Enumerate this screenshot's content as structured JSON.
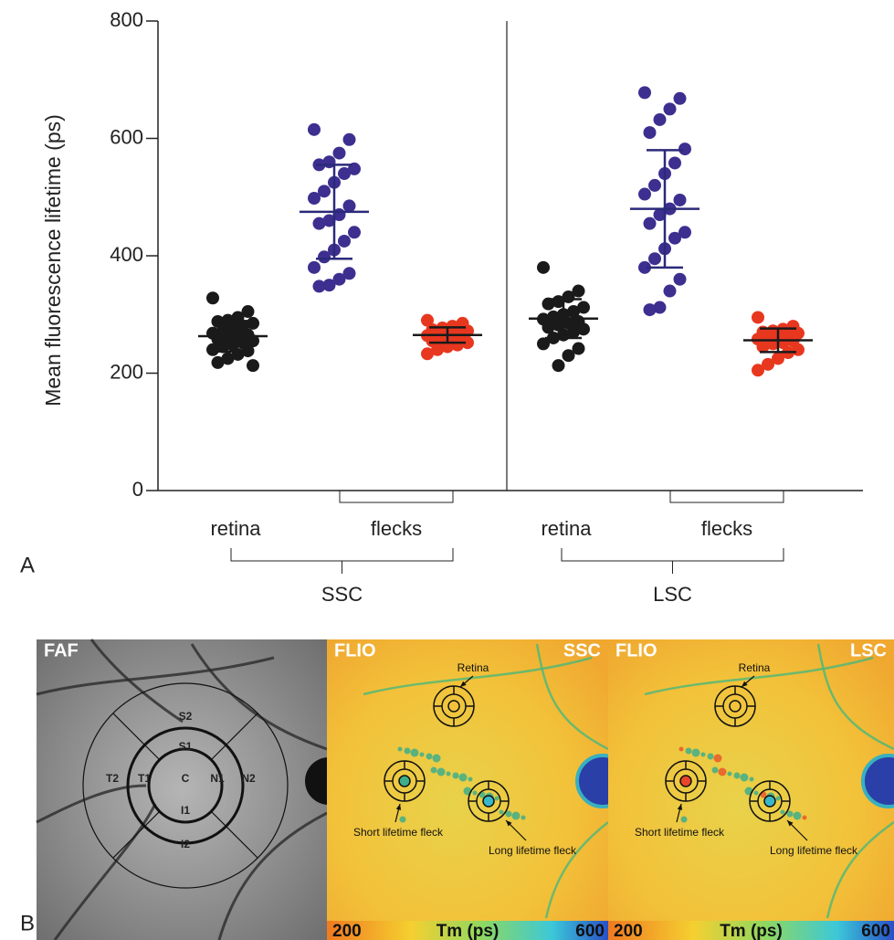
{
  "chart_data": {
    "type": "dot",
    "ylabel": "Mean fluorescence lifetime (ps)",
    "ylim": [
      0,
      800
    ],
    "yticks": [
      0,
      200,
      400,
      600,
      800
    ],
    "panel_label": "A",
    "groups": [
      {
        "label": "SSC",
        "retina_label": "retina",
        "flecks_label": "flecks",
        "series": [
          {
            "color": "#1a1a1a",
            "bar_color": "#1a1a1a",
            "mean": 263,
            "sd": 26,
            "values": [
              328,
              305,
              295,
              290,
              288,
              285,
              280,
              276,
              272,
              268,
              265,
              262,
              260,
              258,
              255,
              252,
              248,
              245,
              240,
              238,
              232,
              225,
              218,
              213
            ]
          },
          {
            "color": "#3d2f8f",
            "bar_color": "#2b2a7a",
            "mean": 475,
            "sd": 80,
            "values": [
              615,
              598,
              575,
              560,
              555,
              548,
              540,
              525,
              510,
              498,
              485,
              470,
              460,
              455,
              440,
              425,
              410,
              398,
              380,
              370,
              360,
              350,
              348
            ]
          },
          {
            "color": "#e8371f",
            "bar_color": "#1a1a1a",
            "mean": 265,
            "sd": 13,
            "values": [
              290,
              285,
              280,
              277,
              274,
              272,
              270,
              268,
              266,
              264,
              262,
              260,
              258,
              255,
              252,
              248,
              245,
              240,
              233
            ]
          }
        ]
      },
      {
        "label": "LSC",
        "retina_label": "retina",
        "flecks_label": "flecks",
        "series": [
          {
            "color": "#1a1a1a",
            "bar_color": "#1a1a1a",
            "mean": 293,
            "sd": 33,
            "values": [
              380,
              340,
              330,
              322,
              318,
              312,
              305,
              300,
              296,
              292,
              288,
              285,
              282,
              278,
              275,
              270,
              265,
              260,
              250,
              242,
              230,
              213
            ]
          },
          {
            "color": "#3d2f8f",
            "bar_color": "#2b2a7a",
            "mean": 480,
            "sd": 100,
            "values": [
              678,
              668,
              650,
              632,
              610,
              582,
              558,
              540,
              520,
              505,
              495,
              480,
              470,
              455,
              440,
              430,
              412,
              395,
              380,
              360,
              340,
              312,
              308
            ]
          },
          {
            "color": "#e8371f",
            "bar_color": "#1a1a1a",
            "mean": 256,
            "sd": 20,
            "values": [
              295,
              280,
              275,
              272,
              270,
              268,
              265,
              262,
              260,
              258,
              255,
              252,
              250,
              245,
              240,
              235,
              225,
              215,
              205
            ]
          }
        ]
      }
    ]
  },
  "panel_b": {
    "label": "B",
    "faf": {
      "title": "FAF",
      "sectors": [
        "S2",
        "S1",
        "C",
        "T1",
        "T2",
        "N1",
        "N2",
        "I1",
        "I2"
      ]
    },
    "flio": [
      {
        "title": "FLIO",
        "condition": "SSC",
        "retina": "Retina",
        "short": "Short lifetime fleck",
        "long": "Long lifetime fleck",
        "scale_min": 200,
        "scale_unit": "Tm (ps)",
        "scale_max": 600
      },
      {
        "title": "FLIO",
        "condition": "LSC",
        "retina": "Retina",
        "short": "Short lifetime fleck",
        "long": "Long lifetime fleck",
        "scale_min": 200,
        "scale_unit": "Tm (ps)",
        "scale_max": 600
      }
    ]
  }
}
